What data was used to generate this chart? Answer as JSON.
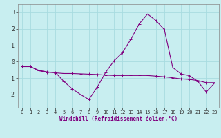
{
  "xlabel": "Windchill (Refroidissement éolien,°C)",
  "bg_color": "#c8eef0",
  "line_color": "#800080",
  "grid_color": "#a8dce0",
  "ylim": [
    -2.8,
    3.5
  ],
  "xlim": [
    -0.5,
    23.5
  ],
  "yticks": [
    -2,
    -1,
    0,
    1,
    2,
    3
  ],
  "xticks": [
    0,
    1,
    2,
    3,
    4,
    5,
    6,
    7,
    8,
    9,
    10,
    11,
    12,
    13,
    14,
    15,
    16,
    17,
    18,
    19,
    20,
    21,
    22,
    23
  ],
  "line1_x": [
    0,
    1,
    2,
    3,
    4,
    5,
    6,
    7,
    8,
    9,
    10,
    11,
    12,
    13,
    14,
    15,
    16,
    17,
    18,
    19,
    20,
    21,
    22,
    23
  ],
  "line1_y": [
    -0.3,
    -0.3,
    -0.55,
    -0.65,
    -0.65,
    -1.2,
    -1.65,
    -2.0,
    -2.3,
    -1.55,
    -0.65,
    0.05,
    0.55,
    1.35,
    2.3,
    2.9,
    2.5,
    1.95,
    -0.35,
    -0.75,
    -0.85,
    -1.2,
    -1.85,
    -1.3
  ],
  "line2_x": [
    0,
    1,
    2,
    3,
    4,
    5,
    6,
    7,
    8,
    9,
    10,
    11,
    12,
    13,
    14,
    15,
    16,
    17,
    18,
    19,
    20,
    21,
    22,
    23
  ],
  "line2_y": [
    -0.3,
    -0.3,
    -0.52,
    -0.62,
    -0.68,
    -0.72,
    -0.72,
    -0.74,
    -0.76,
    -0.78,
    -0.82,
    -0.84,
    -0.84,
    -0.84,
    -0.84,
    -0.84,
    -0.88,
    -0.92,
    -0.98,
    -1.05,
    -1.08,
    -1.15,
    -1.28,
    -1.28
  ]
}
